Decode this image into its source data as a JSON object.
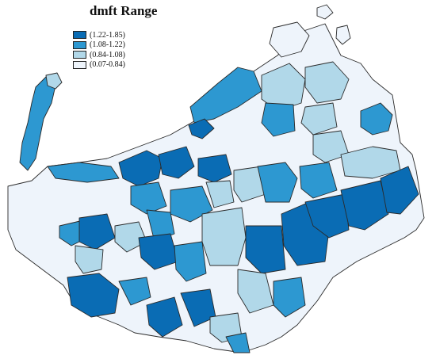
{
  "title": "dmft Range",
  "legend": [
    {
      "label": "(1.22-1.85)",
      "color": "#0a6cb4"
    },
    {
      "label": "(1.08-1.22)",
      "color": "#2d98d1"
    },
    {
      "label": "(0.84-1.08)",
      "color": "#b1d8e9"
    },
    {
      "label": "(0.07-0.84)",
      "color": "#eef4fb"
    }
  ],
  "colors": {
    "class1": "#0a6cb4",
    "class2": "#2d98d1",
    "class3": "#b1d8e9",
    "class4": "#eef4fb",
    "border": "#2a2a2a",
    "background": "#ffffff"
  }
}
